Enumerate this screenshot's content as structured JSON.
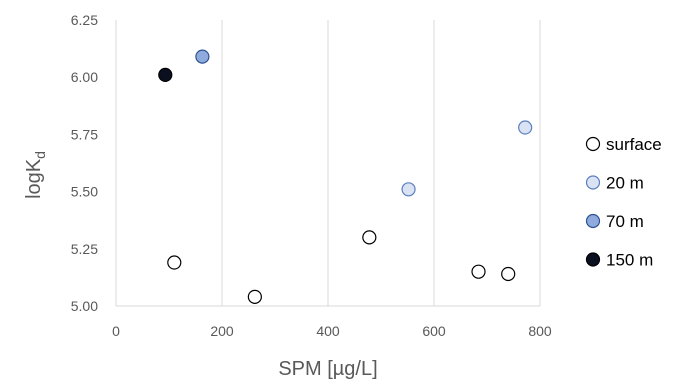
{
  "chart_data": {
    "type": "scatter",
    "title": "",
    "xlabel": "SPM [µg/L]",
    "ylabel_main": "logK",
    "ylabel_sub": "d",
    "xlim": [
      0,
      800
    ],
    "ylim": [
      5.0,
      6.25
    ],
    "xticks": [
      0,
      200,
      400,
      600,
      800
    ],
    "yticks": [
      5.0,
      5.25,
      5.5,
      5.75,
      6.0,
      6.25
    ],
    "xtick_labels": [
      "0",
      "200",
      "400",
      "600",
      "800"
    ],
    "ytick_labels": [
      "5.00",
      "5.25",
      "5.50",
      "5.75",
      "6.00",
      "6.25"
    ],
    "grid": "vertical",
    "legend_position": "right",
    "series": [
      {
        "name": "surface",
        "color": "#ffffff",
        "edge": "#000000",
        "points": [
          [
            110,
            5.19
          ],
          [
            262,
            5.04
          ],
          [
            478,
            5.3
          ],
          [
            684,
            5.15
          ],
          [
            740,
            5.14
          ]
        ]
      },
      {
        "name": "20 m",
        "color": "#dae3f3",
        "edge": "#5b7fbf",
        "points": [
          [
            552,
            5.51
          ],
          [
            772,
            5.78
          ]
        ]
      },
      {
        "name": "70 m",
        "color": "#8faadc",
        "edge": "#2f528f",
        "points": [
          [
            163,
            6.09
          ]
        ]
      },
      {
        "name": "150 m",
        "color": "#0b1021",
        "edge": "#000000",
        "points": [
          [
            93,
            6.01
          ]
        ]
      }
    ]
  }
}
